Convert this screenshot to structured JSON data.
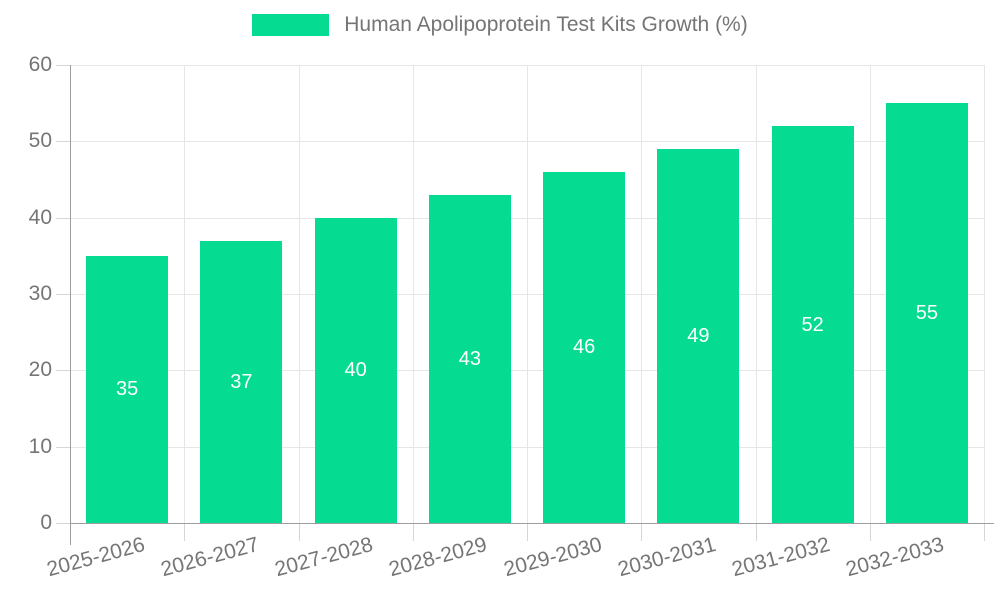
{
  "chart_data": {
    "type": "bar",
    "title": "Human Apolipoprotein Test Kits Growth (%)",
    "legend": {
      "label": "Human Apolipoprotein Test Kits Growth (%)",
      "position": "top-center"
    },
    "categories": [
      "2025-2026",
      "2026-2027",
      "2027-2028",
      "2028-2029",
      "2029-2030",
      "2030-2031",
      "2031-2032",
      "2032-2033"
    ],
    "values": [
      35,
      37,
      40,
      43,
      46,
      49,
      52,
      55
    ],
    "xlabel": "",
    "ylabel": "",
    "ylim": [
      0,
      60
    ],
    "yticks": [
      0,
      10,
      20,
      30,
      40,
      50,
      60
    ],
    "grid": true,
    "x_label_rotation_deg": -15,
    "colors": {
      "bar": "#06DC91",
      "bar_label_text": "#ffffff",
      "axis_line": "#9e9e9e",
      "gridline": "#e6e6e6",
      "tick_mark": "#d6d6d6",
      "tick_text": "#757575",
      "background": "#ffffff"
    }
  }
}
